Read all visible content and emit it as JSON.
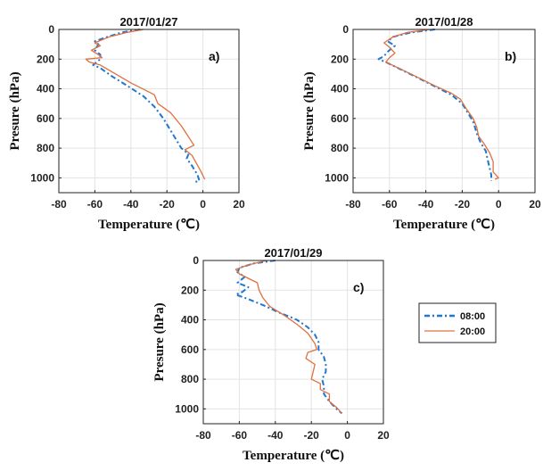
{
  "chart_data": [
    {
      "type": "line",
      "title": "2017/01/27",
      "panel_label": "a)",
      "xlabel": "Temperature (℃)",
      "ylabel": "Presure (hPa)",
      "xlim": [
        -80,
        20
      ],
      "ylim": [
        1100,
        0
      ],
      "y_inverted": true,
      "grid": true,
      "xticks": [
        "-80",
        "-60",
        "-40",
        "-20",
        "0",
        "20"
      ],
      "yticks": [
        "0",
        "200",
        "400",
        "600",
        "800",
        "1000"
      ],
      "series": [
        {
          "name": "08:00",
          "color": "#1f77d0",
          "style": "dashdot",
          "points": [
            [
              -35,
              0
            ],
            [
              -45,
              20
            ],
            [
              -53,
              50
            ],
            [
              -60,
              80
            ],
            [
              -58,
              100
            ],
            [
              -60,
              140
            ],
            [
              -57,
              170
            ],
            [
              -57,
              200
            ],
            [
              -61,
              240
            ],
            [
              -57,
              260
            ],
            [
              -50,
              320
            ],
            [
              -42,
              380
            ],
            [
              -33,
              450
            ],
            [
              -27,
              520
            ],
            [
              -22,
              600
            ],
            [
              -17,
              700
            ],
            [
              -12,
              800
            ],
            [
              -8,
              840
            ],
            [
              -9,
              870
            ],
            [
              -6,
              920
            ],
            [
              -3,
              980
            ],
            [
              -2,
              1020
            ],
            [
              -5,
              1030
            ]
          ]
        },
        {
          "name": "20:00",
          "color": "#e07040",
          "style": "solid",
          "points": [
            [
              -33,
              0
            ],
            [
              -42,
              20
            ],
            [
              -52,
              50
            ],
            [
              -60,
              90
            ],
            [
              -57,
              110
            ],
            [
              -62,
              140
            ],
            [
              -58,
              170
            ],
            [
              -56,
              190
            ],
            [
              -65,
              200
            ],
            [
              -63,
              220
            ],
            [
              -57,
              240
            ],
            [
              -50,
              290
            ],
            [
              -40,
              360
            ],
            [
              -27,
              440
            ],
            [
              -25,
              500
            ],
            [
              -18,
              560
            ],
            [
              -12,
              650
            ],
            [
              -5,
              780
            ],
            [
              -10,
              810
            ],
            [
              -6,
              850
            ],
            [
              -1,
              960
            ],
            [
              1,
              1010
            ]
          ]
        }
      ]
    },
    {
      "type": "line",
      "title": "2017/01/28",
      "panel_label": "b)",
      "xlabel": "Temperature (℃)",
      "ylabel": "Presure (hPa)",
      "xlim": [
        -80,
        20
      ],
      "ylim": [
        1100,
        0
      ],
      "y_inverted": true,
      "grid": true,
      "xticks": [
        "-80",
        "-60",
        "-40",
        "-20",
        "0",
        "20"
      ],
      "yticks": [
        "0",
        "200",
        "400",
        "600",
        "800",
        "1000"
      ],
      "series": [
        {
          "name": "08:00",
          "color": "#1f77d0",
          "style": "dashdot",
          "points": [
            [
              -35,
              0
            ],
            [
              -48,
              20
            ],
            [
              -58,
              50
            ],
            [
              -61,
              80
            ],
            [
              -57,
              110
            ],
            [
              -61,
              150
            ],
            [
              -63,
              180
            ],
            [
              -66,
              200
            ],
            [
              -62,
              220
            ],
            [
              -52,
              280
            ],
            [
              -42,
              340
            ],
            [
              -34,
              390
            ],
            [
              -26,
              440
            ],
            [
              -20,
              500
            ],
            [
              -17,
              560
            ],
            [
              -14,
              620
            ],
            [
              -12,
              700
            ],
            [
              -10,
              760
            ],
            [
              -7,
              820
            ],
            [
              -6,
              880
            ],
            [
              -5,
              930
            ],
            [
              -4,
              980
            ],
            [
              -4,
              1020
            ]
          ]
        },
        {
          "name": "20:00",
          "color": "#e07040",
          "style": "solid",
          "points": [
            [
              -38,
              0
            ],
            [
              -50,
              20
            ],
            [
              -58,
              50
            ],
            [
              -63,
              90
            ],
            [
              -60,
              120
            ],
            [
              -57,
              160
            ],
            [
              -60,
              190
            ],
            [
              -62,
              220
            ],
            [
              -55,
              260
            ],
            [
              -45,
              320
            ],
            [
              -35,
              380
            ],
            [
              -26,
              430
            ],
            [
              -21,
              470
            ],
            [
              -18,
              530
            ],
            [
              -14,
              600
            ],
            [
              -12,
              660
            ],
            [
              -11,
              720
            ],
            [
              -8,
              770
            ],
            [
              -5,
              830
            ],
            [
              -3,
              890
            ],
            [
              -3,
              960
            ],
            [
              0,
              1000
            ],
            [
              -2,
              1010
            ]
          ]
        }
      ]
    },
    {
      "type": "line",
      "title": "2017/01/29",
      "panel_label": "c)",
      "xlabel": "Temperature (℃)",
      "ylabel": "Presure (hPa)",
      "xlim": [
        -80,
        20
      ],
      "ylim": [
        1100,
        0
      ],
      "y_inverted": true,
      "grid": true,
      "xticks": [
        "-80",
        "-60",
        "-40",
        "-20",
        "0",
        "20"
      ],
      "yticks": [
        "0",
        "200",
        "400",
        "600",
        "800",
        "1000"
      ],
      "series": [
        {
          "name": "08:00",
          "color": "#1f77d0",
          "style": "dashdot",
          "points": [
            [
              -40,
              0
            ],
            [
              -52,
              20
            ],
            [
              -60,
              50
            ],
            [
              -61,
              80
            ],
            [
              -57,
              110
            ],
            [
              -61,
              150
            ],
            [
              -55,
              180
            ],
            [
              -58,
              210
            ],
            [
              -62,
              230
            ],
            [
              -55,
              260
            ],
            [
              -47,
              300
            ],
            [
              -38,
              350
            ],
            [
              -28,
              400
            ],
            [
              -22,
              450
            ],
            [
              -18,
              500
            ],
            [
              -16,
              550
            ],
            [
              -16,
              600
            ],
            [
              -13,
              650
            ],
            [
              -12,
              700
            ],
            [
              -12,
              750
            ],
            [
              -14,
              800
            ],
            [
              -13,
              850
            ],
            [
              -13,
              900
            ],
            [
              -10,
              950
            ],
            [
              -6,
              1000
            ],
            [
              -3,
              1030
            ]
          ]
        },
        {
          "name": "20:00",
          "color": "#e07040",
          "style": "solid",
          "points": [
            [
              -45,
              0
            ],
            [
              -55,
              30
            ],
            [
              -62,
              60
            ],
            [
              -60,
              90
            ],
            [
              -55,
              120
            ],
            [
              -50,
              150
            ],
            [
              -49,
              200
            ],
            [
              -47,
              250
            ],
            [
              -43,
              310
            ],
            [
              -35,
              370
            ],
            [
              -28,
              430
            ],
            [
              -22,
              490
            ],
            [
              -18,
              560
            ],
            [
              -17,
              600
            ],
            [
              -22,
              620
            ],
            [
              -23,
              660
            ],
            [
              -18,
              700
            ],
            [
              -19,
              750
            ],
            [
              -20,
              800
            ],
            [
              -15,
              830
            ],
            [
              -15,
              870
            ],
            [
              -10,
              900
            ],
            [
              -10,
              950
            ],
            [
              -6,
              990
            ],
            [
              -3,
              1030
            ]
          ]
        }
      ]
    }
  ],
  "legend": {
    "position": "right",
    "entries": [
      {
        "label": "08:00",
        "color": "#1f77d0",
        "style": "dashdot"
      },
      {
        "label": "20:00",
        "color": "#e07040",
        "style": "solid"
      }
    ]
  }
}
